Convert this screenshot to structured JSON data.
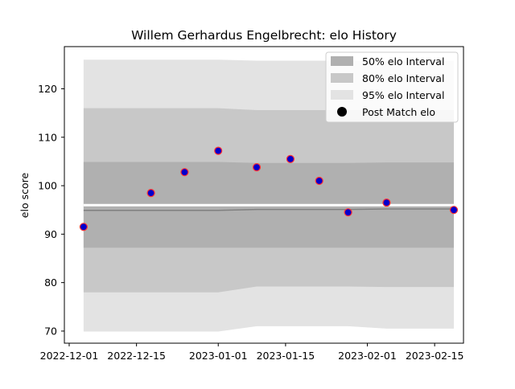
{
  "chart_data": {
    "type": "line",
    "title": "Willem Gerhardus Engelbrecht: elo History",
    "xlabel": "",
    "ylabel": "elo score",
    "x_axis_type": "date",
    "xlim": [
      "2022-11-30",
      "2023-02-21"
    ],
    "ylim": [
      67.5,
      128.7
    ],
    "x_ticks": [
      "2022-12-01",
      "2022-12-15",
      "2023-01-01",
      "2023-01-15",
      "2023-02-01",
      "2023-02-15"
    ],
    "y_ticks": [
      70,
      80,
      90,
      100,
      110,
      120
    ],
    "grid": false,
    "legend_placement": "top-right",
    "legend": [
      "50% elo Interval",
      "80% elo Interval",
      "95% elo Interval",
      "Post Match elo"
    ],
    "colors": {
      "band_50": "#b0b0b0",
      "band_80": "#c8c8c8",
      "band_95": "#e3e3e3",
      "mean_line": "#808080",
      "marker_fill": "#0000cc",
      "marker_edge": "#ff3333",
      "legend_marker": "#000000"
    },
    "bands": {
      "dates": [
        "2022-12-04",
        "2022-12-18",
        "2022-12-25",
        "2023-01-01",
        "2023-01-09",
        "2023-01-16",
        "2023-01-22",
        "2023-01-28",
        "2023-02-05",
        "2023-02-19"
      ],
      "band_95": {
        "lower": [
          69.9,
          69.9,
          69.9,
          69.9,
          71.0,
          71.0,
          71.0,
          71.0,
          70.5,
          70.5
        ],
        "upper": [
          126.0,
          126.0,
          126.0,
          126.0,
          125.8,
          125.8,
          125.8,
          125.8,
          125.8,
          125.8
        ]
      },
      "band_80": {
        "lower": [
          78.0,
          78.0,
          78.0,
          78.0,
          79.2,
          79.2,
          79.2,
          79.2,
          79.1,
          79.1
        ],
        "upper": [
          116.0,
          116.0,
          116.0,
          116.0,
          115.6,
          115.6,
          115.6,
          115.6,
          115.6,
          115.6
        ]
      },
      "band_50": {
        "lower": [
          87.2,
          87.2,
          87.2,
          87.2,
          87.2,
          87.2,
          87.2,
          87.2,
          87.2,
          87.2
        ],
        "upper": [
          104.9,
          104.9,
          104.9,
          104.9,
          104.7,
          104.7,
          104.7,
          104.7,
          104.8,
          104.8
        ]
      },
      "mean": [
        94.9,
        94.9,
        94.9,
        94.9,
        95.1,
        95.1,
        95.1,
        95.1,
        95.2,
        95.2
      ],
      "white_gap": [
        96.0,
        96.0,
        96.0,
        96.0,
        96.0,
        96.0,
        96.0,
        96.0,
        96.0,
        96.0
      ]
    },
    "series": [
      {
        "name": "Post Match elo",
        "x": [
          "2022-12-04",
          "2022-12-18",
          "2022-12-25",
          "2023-01-01",
          "2023-01-09",
          "2023-01-16",
          "2023-01-22",
          "2023-01-28",
          "2023-02-05",
          "2023-02-19"
        ],
        "y": [
          91.5,
          98.5,
          102.8,
          107.2,
          103.8,
          105.5,
          101.0,
          94.5,
          96.5,
          95.0
        ]
      }
    ]
  }
}
